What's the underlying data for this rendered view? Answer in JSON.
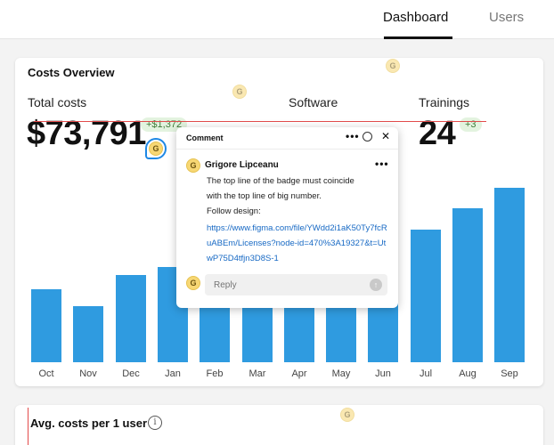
{
  "nav": {
    "tabs": [
      {
        "label": "Dashboard"
      },
      {
        "label": "Users"
      }
    ]
  },
  "costs_card": {
    "title": "Costs Overview",
    "stats": [
      {
        "label": "Total costs",
        "value": "$73,791",
        "badge": "+$1,372"
      },
      {
        "label": "Software",
        "value": "",
        "badge": ""
      },
      {
        "label": "Trainings",
        "value": "24",
        "badge": "+3"
      }
    ]
  },
  "avg_card": {
    "title": "Avg. costs per 1 user",
    "info_icon": "i"
  },
  "avatars": {
    "initial": "G"
  },
  "comment": {
    "header": "Comment",
    "author": "Grigore Lipceanu",
    "text_lines": [
      "The top line of the badge must coincide",
      "with the top line of big number.",
      "Follow design:"
    ],
    "link": "https://www.figma.com/file/YWdd2i1aK50Ty7fcRuABEm/Licenses?node-id=470%3A19327&t=UtwP75D4tfjn3D8S-1",
    "reply_placeholder": "Reply",
    "more": "•••",
    "close": "✕",
    "send": "↑"
  },
  "colors": {
    "bar": "#2f9be0",
    "accent_line": "#e24b4b",
    "avatar": "#f7d774",
    "link": "#1769c4"
  },
  "chart_data": {
    "type": "bar",
    "categories": [
      "Oct",
      "Nov",
      "Dec",
      "Jan",
      "Feb",
      "Mar",
      "Apr",
      "May",
      "Jun",
      "Jul",
      "Aug",
      "Sep"
    ],
    "values": [
      82,
      63,
      98,
      107,
      110,
      114,
      118,
      122,
      123,
      149,
      173,
      196
    ],
    "ylim": [
      0,
      220
    ],
    "grid": false
  }
}
